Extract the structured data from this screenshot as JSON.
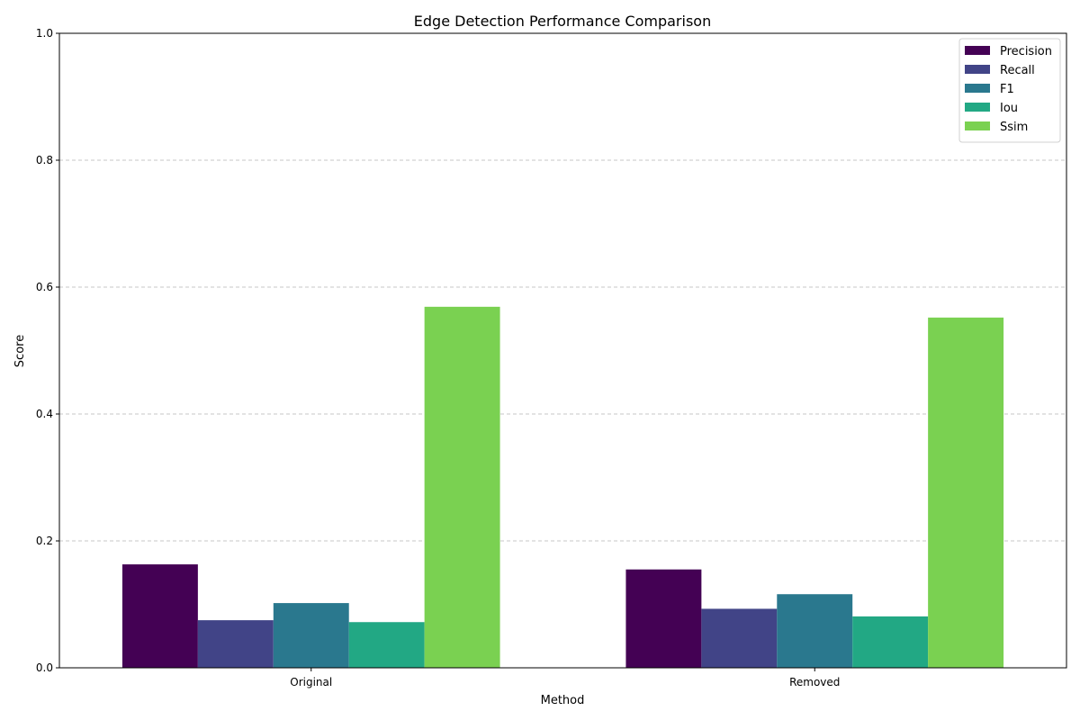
{
  "chart_data": {
    "type": "bar",
    "title": "Edge Detection Performance Comparison",
    "xlabel": "Method",
    "ylabel": "Score",
    "categories": [
      "Original",
      "Removed"
    ],
    "series": [
      {
        "name": "Precision",
        "color": "#440154",
        "values": [
          0.163,
          0.155
        ]
      },
      {
        "name": "Recall",
        "color": "#414487",
        "values": [
          0.075,
          0.093
        ]
      },
      {
        "name": "F1",
        "color": "#2a788e",
        "values": [
          0.102,
          0.116
        ]
      },
      {
        "name": "Iou",
        "color": "#22a884",
        "values": [
          0.072,
          0.081
        ]
      },
      {
        "name": "Ssim",
        "color": "#7ad151",
        "values": [
          0.569,
          0.552
        ]
      }
    ],
    "ylim": [
      0,
      1.0
    ],
    "yticks": [
      "0.0",
      "0.2",
      "0.4",
      "0.6",
      "0.8",
      "1.0"
    ],
    "grid": "y-dashed",
    "legend_position": "top-right"
  }
}
